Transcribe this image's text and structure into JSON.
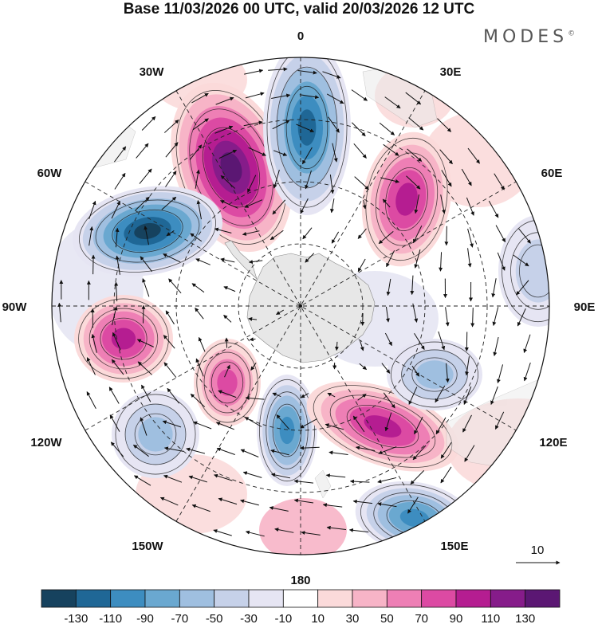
{
  "title": "Base 11/03/2026 00 UTC, valid 20/03/2026 12 UTC",
  "brand": "MODES",
  "brand_mark": "©",
  "longitude_labels": [
    "0",
    "30E",
    "60E",
    "90E",
    "120E",
    "150E",
    "180",
    "150W",
    "120W",
    "90W",
    "60W",
    "30W"
  ],
  "vector_reference": "10",
  "colorbar": {
    "ticks": [
      "-130",
      "-110",
      "-90",
      "-70",
      "-50",
      "-30",
      "-10",
      "10",
      "30",
      "50",
      "70",
      "90",
      "110",
      "130"
    ],
    "colors": [
      "#16425e",
      "#1f6796",
      "#3d8dc0",
      "#6aa8d0",
      "#9fbfe0",
      "#c6d1e9",
      "#e6e5f3",
      "#ffffff",
      "#fbdada",
      "#f7b4c7",
      "#ee7fb5",
      "#dc4aa3",
      "#b51d91",
      "#861c8a",
      "#5b1773"
    ]
  },
  "anomalies": [
    {
      "name": "pos-atlantic",
      "value": 130
    },
    {
      "name": "neg-prime-meridian",
      "value": -110
    },
    {
      "name": "pos-indian",
      "value": 90
    },
    {
      "name": "neg-drake",
      "value": -130
    },
    {
      "name": "pos-southeast-pacific",
      "value": 90
    },
    {
      "name": "pos-south-pacific",
      "value": 70
    },
    {
      "name": "neg-ross",
      "value": -90
    },
    {
      "name": "pos-australia",
      "value": 90
    },
    {
      "name": "neg-tasman",
      "value": -90
    },
    {
      "name": "neg-pacific-west",
      "value": -50
    },
    {
      "name": "neg-indian-east",
      "value": -50
    },
    {
      "name": "neg-east-90",
      "value": -30
    }
  ]
}
